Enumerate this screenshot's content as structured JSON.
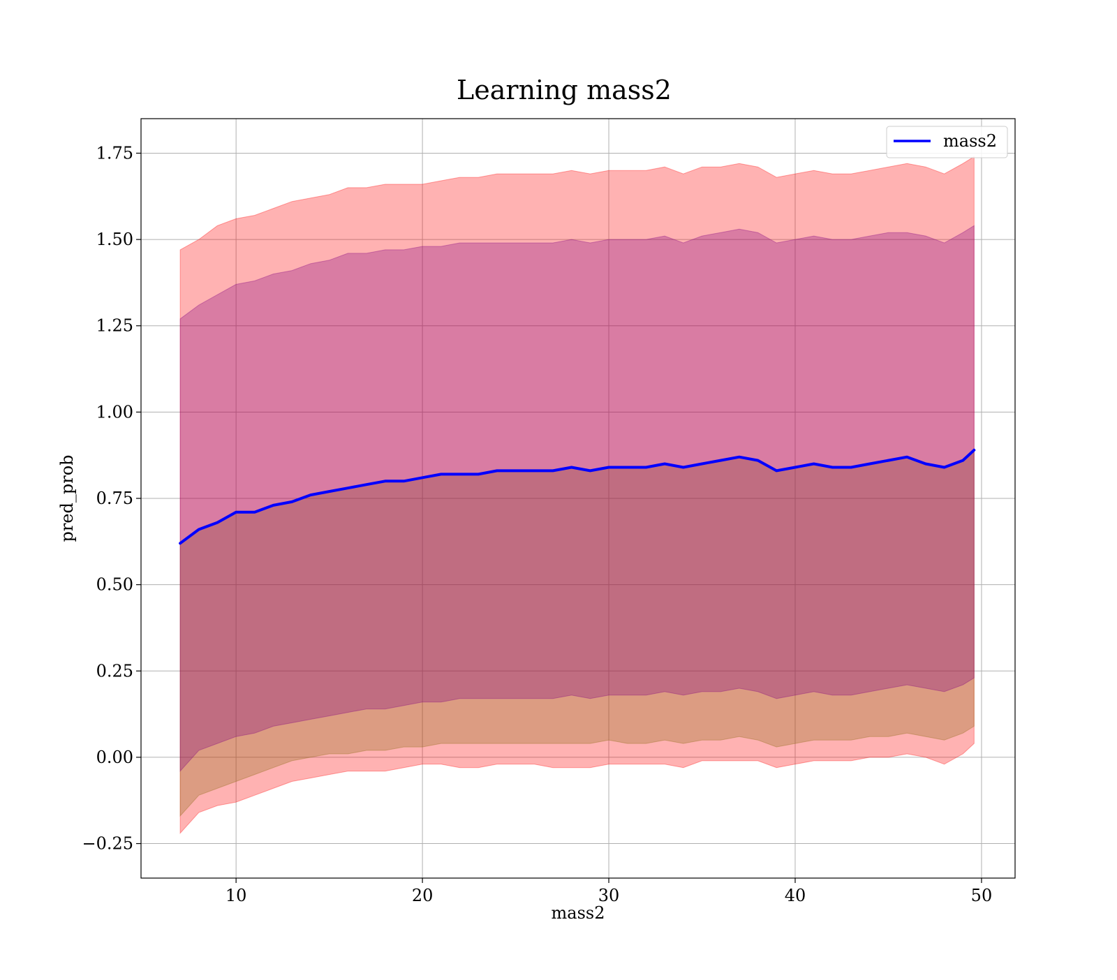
{
  "chart_data": {
    "type": "area",
    "title": "Learning mass2",
    "xlabel": "mass2",
    "ylabel": "pred_prob",
    "xlim": [
      4.9,
      51.8
    ],
    "ylim": [
      -0.35,
      1.85
    ],
    "x_ticks": [
      {
        "value": 10,
        "label": "10"
      },
      {
        "value": 20,
        "label": "20"
      },
      {
        "value": 30,
        "label": "30"
      },
      {
        "value": 40,
        "label": "40"
      },
      {
        "value": 50,
        "label": "50"
      }
    ],
    "y_ticks": [
      {
        "value": -0.25,
        "label": "−0.25"
      },
      {
        "value": 0.0,
        "label": "0.00"
      },
      {
        "value": 0.25,
        "label": "0.25"
      },
      {
        "value": 0.5,
        "label": "0.50"
      },
      {
        "value": 0.75,
        "label": "0.75"
      },
      {
        "value": 1.0,
        "label": "1.00"
      },
      {
        "value": 1.25,
        "label": "1.25"
      },
      {
        "value": 1.5,
        "label": "1.50"
      },
      {
        "value": 1.75,
        "label": "1.75"
      }
    ],
    "grid": true,
    "legend": {
      "position": "top-right",
      "entries": [
        "mass2"
      ]
    },
    "x": [
      7.0,
      8.0,
      9.0,
      10.0,
      11.0,
      12.0,
      13.0,
      14.0,
      15.0,
      16.0,
      17.0,
      18.0,
      19.0,
      20.0,
      21.0,
      22.0,
      23.0,
      24.0,
      25.0,
      26.0,
      27.0,
      28.0,
      29.0,
      30.0,
      31.0,
      32.0,
      33.0,
      34.0,
      35.0,
      36.0,
      37.0,
      38.0,
      39.0,
      40.0,
      41.0,
      42.0,
      43.0,
      44.0,
      45.0,
      46.0,
      47.0,
      48.0,
      49.0,
      49.6
    ],
    "series": [
      {
        "name": "mass2",
        "color": "#0000ff",
        "values": [
          0.62,
          0.66,
          0.68,
          0.71,
          0.71,
          0.73,
          0.74,
          0.76,
          0.77,
          0.78,
          0.79,
          0.8,
          0.8,
          0.81,
          0.82,
          0.82,
          0.82,
          0.83,
          0.83,
          0.83,
          0.83,
          0.84,
          0.83,
          0.84,
          0.84,
          0.84,
          0.85,
          0.84,
          0.85,
          0.86,
          0.87,
          0.86,
          0.83,
          0.84,
          0.85,
          0.84,
          0.84,
          0.85,
          0.86,
          0.87,
          0.85,
          0.84,
          0.86,
          0.89
        ]
      }
    ],
    "bands": [
      {
        "color": "#ff0000",
        "opacity": 0.3,
        "lower": [
          -0.22,
          -0.16,
          -0.14,
          -0.13,
          -0.11,
          -0.09,
          -0.07,
          -0.06,
          -0.05,
          -0.04,
          -0.04,
          -0.04,
          -0.03,
          -0.02,
          -0.02,
          -0.03,
          -0.03,
          -0.02,
          -0.02,
          -0.02,
          -0.03,
          -0.03,
          -0.03,
          -0.02,
          -0.02,
          -0.02,
          -0.02,
          -0.03,
          -0.01,
          -0.01,
          -0.01,
          -0.01,
          -0.03,
          -0.02,
          -0.01,
          -0.01,
          -0.01,
          0.0,
          0.0,
          0.01,
          0.0,
          -0.02,
          0.01,
          0.04
        ],
        "upper": [
          1.47,
          1.5,
          1.54,
          1.56,
          1.57,
          1.59,
          1.61,
          1.62,
          1.63,
          1.65,
          1.65,
          1.66,
          1.66,
          1.66,
          1.67,
          1.68,
          1.68,
          1.69,
          1.69,
          1.69,
          1.69,
          1.7,
          1.69,
          1.7,
          1.7,
          1.7,
          1.71,
          1.69,
          1.71,
          1.71,
          1.72,
          1.71,
          1.68,
          1.69,
          1.7,
          1.69,
          1.69,
          1.7,
          1.71,
          1.72,
          1.71,
          1.69,
          1.72,
          1.74
        ]
      },
      {
        "color": "#8b6914",
        "opacity": 0.3,
        "lower": [
          -0.17,
          -0.11,
          -0.09,
          -0.07,
          -0.05,
          -0.03,
          -0.01,
          0.0,
          0.01,
          0.01,
          0.02,
          0.02,
          0.03,
          0.03,
          0.04,
          0.04,
          0.04,
          0.04,
          0.04,
          0.04,
          0.04,
          0.04,
          0.04,
          0.05,
          0.04,
          0.04,
          0.05,
          0.04,
          0.05,
          0.05,
          0.06,
          0.05,
          0.03,
          0.04,
          0.05,
          0.05,
          0.05,
          0.06,
          0.06,
          0.07,
          0.06,
          0.05,
          0.07,
          0.09
        ]
      },
      {
        "color": "#800080",
        "opacity": 0.3,
        "lower": [
          -0.04,
          0.02,
          0.04,
          0.06,
          0.07,
          0.09,
          0.1,
          0.11,
          0.12,
          0.13,
          0.14,
          0.14,
          0.15,
          0.16,
          0.16,
          0.17,
          0.17,
          0.17,
          0.17,
          0.17,
          0.17,
          0.18,
          0.17,
          0.18,
          0.18,
          0.18,
          0.19,
          0.18,
          0.19,
          0.19,
          0.2,
          0.19,
          0.17,
          0.18,
          0.19,
          0.18,
          0.18,
          0.19,
          0.2,
          0.21,
          0.2,
          0.19,
          0.21,
          0.23
        ],
        "upper": [
          1.27,
          1.31,
          1.34,
          1.37,
          1.38,
          1.4,
          1.41,
          1.43,
          1.44,
          1.46,
          1.46,
          1.47,
          1.47,
          1.48,
          1.48,
          1.49,
          1.49,
          1.49,
          1.49,
          1.49,
          1.49,
          1.5,
          1.49,
          1.5,
          1.5,
          1.5,
          1.51,
          1.49,
          1.51,
          1.52,
          1.53,
          1.52,
          1.49,
          1.5,
          1.51,
          1.5,
          1.5,
          1.51,
          1.52,
          1.52,
          1.51,
          1.49,
          1.52,
          1.54
        ]
      }
    ]
  }
}
